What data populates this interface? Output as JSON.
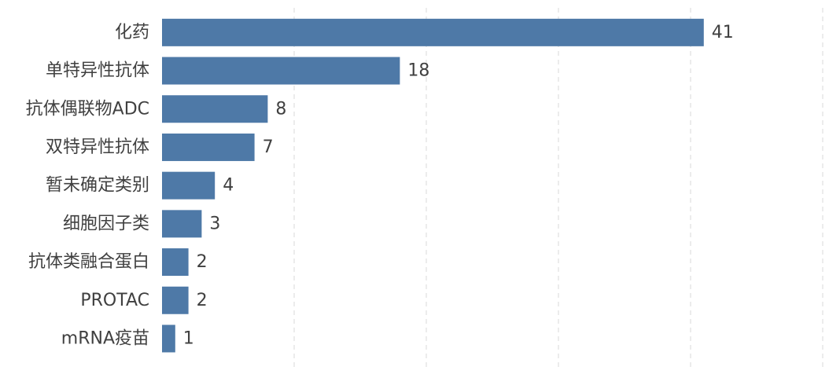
{
  "chart_data": {
    "type": "bar",
    "orientation": "horizontal",
    "categories": [
      "化药",
      "单特异性抗体",
      "抗体偶联物ADC",
      "双特异性抗体",
      "暂未确定类别",
      "细胞因子类",
      "抗体类融合蛋白",
      "PROTAC",
      "mRNA疫苗"
    ],
    "values": [
      41,
      18,
      8,
      7,
      4,
      3,
      2,
      2,
      1
    ],
    "xlim": [
      0,
      50
    ],
    "grid": true,
    "bar_color": "#4e79a7",
    "title": "",
    "xlabel": "",
    "ylabel": ""
  }
}
